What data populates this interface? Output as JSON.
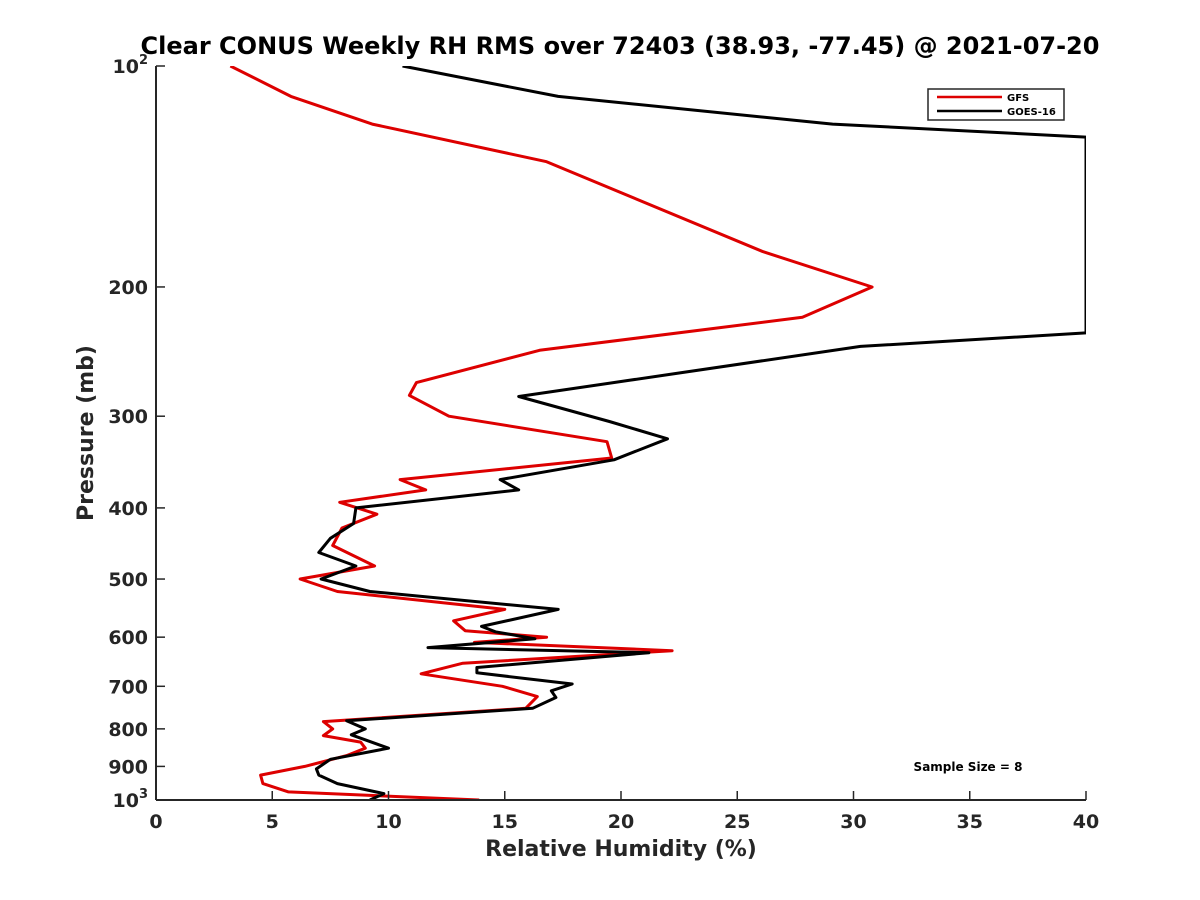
{
  "chart_data": {
    "type": "line",
    "title": "Clear CONUS Weekly RH RMS over 72403 (38.93, -77.45) @ 2021-07-20",
    "xlabel": "Relative Humidity (%)",
    "ylabel": "Pressure (mb)",
    "xlim": [
      0,
      40
    ],
    "ylim": [
      100,
      1000
    ],
    "y_scale": "log",
    "y_reversed": true,
    "grid": false,
    "legend_position": "top-right",
    "xticks": [
      "0",
      "5",
      "10",
      "15",
      "20",
      "25",
      "30",
      "35",
      "40"
    ],
    "xtick_values": [
      0,
      5,
      10,
      15,
      20,
      25,
      30,
      35,
      40
    ],
    "ytick_values": [
      100,
      200,
      300,
      400,
      500,
      600,
      700,
      800,
      900,
      1000
    ],
    "ytick_labels": [
      {
        "base": "10",
        "sup": "2"
      },
      {
        "base": "200"
      },
      {
        "base": "300"
      },
      {
        "base": "400"
      },
      {
        "base": "500"
      },
      {
        "base": "600"
      },
      {
        "base": "700"
      },
      {
        "base": "800"
      },
      {
        "base": "900"
      },
      {
        "base": "10",
        "sup": "3"
      }
    ],
    "annotation": "Sample Size = 8",
    "series": [
      {
        "name": "GFS",
        "color": "#dd0000",
        "points": [
          [
            3.2,
            100
          ],
          [
            5.8,
            110
          ],
          [
            9.3,
            120
          ],
          [
            16.8,
            135
          ],
          [
            26.1,
            179
          ],
          [
            30.8,
            200
          ],
          [
            27.8,
            220
          ],
          [
            16.5,
            244
          ],
          [
            11.2,
            270
          ],
          [
            10.9,
            281
          ],
          [
            12.6,
            300
          ],
          [
            19.4,
            325
          ],
          [
            19.6,
            342
          ],
          [
            10.5,
            366
          ],
          [
            11.6,
            378
          ],
          [
            7.9,
            393
          ],
          [
            9.5,
            408
          ],
          [
            8.0,
            426
          ],
          [
            7.6,
            450
          ],
          [
            9.4,
            480
          ],
          [
            6.2,
            500
          ],
          [
            7.8,
            520
          ],
          [
            15.0,
            550
          ],
          [
            12.8,
            570
          ],
          [
            13.3,
            588
          ],
          [
            16.8,
            600
          ],
          [
            13.7,
            610
          ],
          [
            22.2,
            626
          ],
          [
            13.2,
            651
          ],
          [
            11.4,
            673
          ],
          [
            14.9,
            700
          ],
          [
            16.4,
            723
          ],
          [
            15.9,
            750
          ],
          [
            7.2,
            782
          ],
          [
            7.6,
            800
          ],
          [
            7.2,
            817
          ],
          [
            8.8,
            834
          ],
          [
            9.0,
            850
          ],
          [
            8.2,
            870
          ],
          [
            6.4,
            900
          ],
          [
            4.5,
            925
          ],
          [
            4.6,
            950
          ],
          [
            5.7,
            975
          ],
          [
            13.9,
            1000
          ]
        ]
      },
      {
        "name": "GOES-16",
        "color": "#000000",
        "points": [
          [
            10.6,
            100
          ],
          [
            17.3,
            110
          ],
          [
            29.1,
            120
          ],
          [
            40.0,
            125
          ],
          [
            40.0,
            231
          ],
          [
            30.3,
            241
          ],
          [
            22.5,
            262
          ],
          [
            15.6,
            282
          ],
          [
            19.5,
            305
          ],
          [
            22.0,
            322
          ],
          [
            19.7,
            344
          ],
          [
            14.8,
            366
          ],
          [
            15.6,
            378
          ],
          [
            8.6,
            400
          ],
          [
            8.5,
            420
          ],
          [
            7.5,
            440
          ],
          [
            7.0,
            460
          ],
          [
            8.6,
            480
          ],
          [
            7.1,
            500
          ],
          [
            9.2,
            520
          ],
          [
            17.3,
            550
          ],
          [
            14.0,
            580
          ],
          [
            14.6,
            590
          ],
          [
            16.3,
            603
          ],
          [
            11.7,
            620
          ],
          [
            21.2,
            630
          ],
          [
            13.8,
            660
          ],
          [
            13.8,
            671
          ],
          [
            17.9,
            695
          ],
          [
            17.0,
            710
          ],
          [
            17.2,
            725
          ],
          [
            16.2,
            750
          ],
          [
            8.2,
            780
          ],
          [
            9.0,
            800
          ],
          [
            8.4,
            815
          ],
          [
            10.0,
            850
          ],
          [
            7.5,
            880
          ],
          [
            6.9,
            907
          ],
          [
            7.0,
            925
          ],
          [
            7.8,
            950
          ],
          [
            9.8,
            980
          ],
          [
            9.2,
            1000
          ]
        ]
      }
    ]
  }
}
